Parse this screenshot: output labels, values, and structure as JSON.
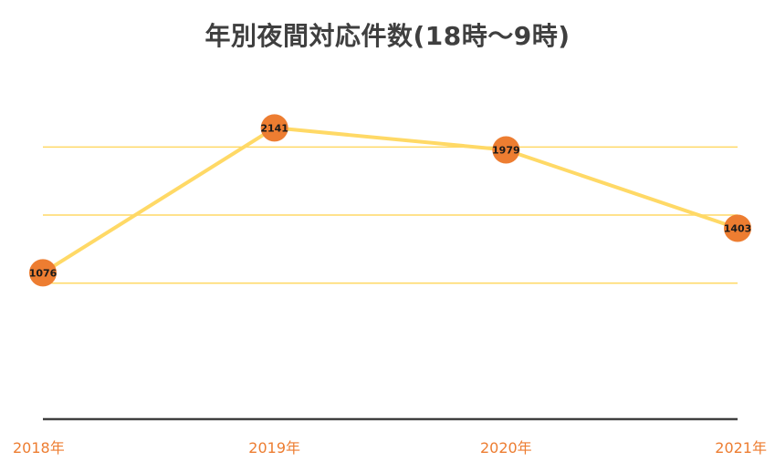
{
  "chart_data": {
    "type": "line",
    "title": "年別夜間対応件数(18時～9時)",
    "xlabel": "",
    "ylabel": "",
    "categories": [
      "2018年",
      "2019年",
      "2020年",
      "2021年"
    ],
    "values": [
      1076,
      2141,
      1979,
      1403
    ],
    "ylim": [
      0,
      2500
    ],
    "y_gridlines": [
      1000,
      1500,
      2000
    ],
    "grid": true,
    "legend": "none",
    "data_labels": [
      "1076",
      "2141",
      "1979",
      "1403"
    ],
    "colors": {
      "line": "#ffd966",
      "marker": "#ed7d31",
      "tick_label": "#ed7d31",
      "grid": "#ffd966",
      "axis": "#404040",
      "title": "#3f3f3f"
    }
  }
}
